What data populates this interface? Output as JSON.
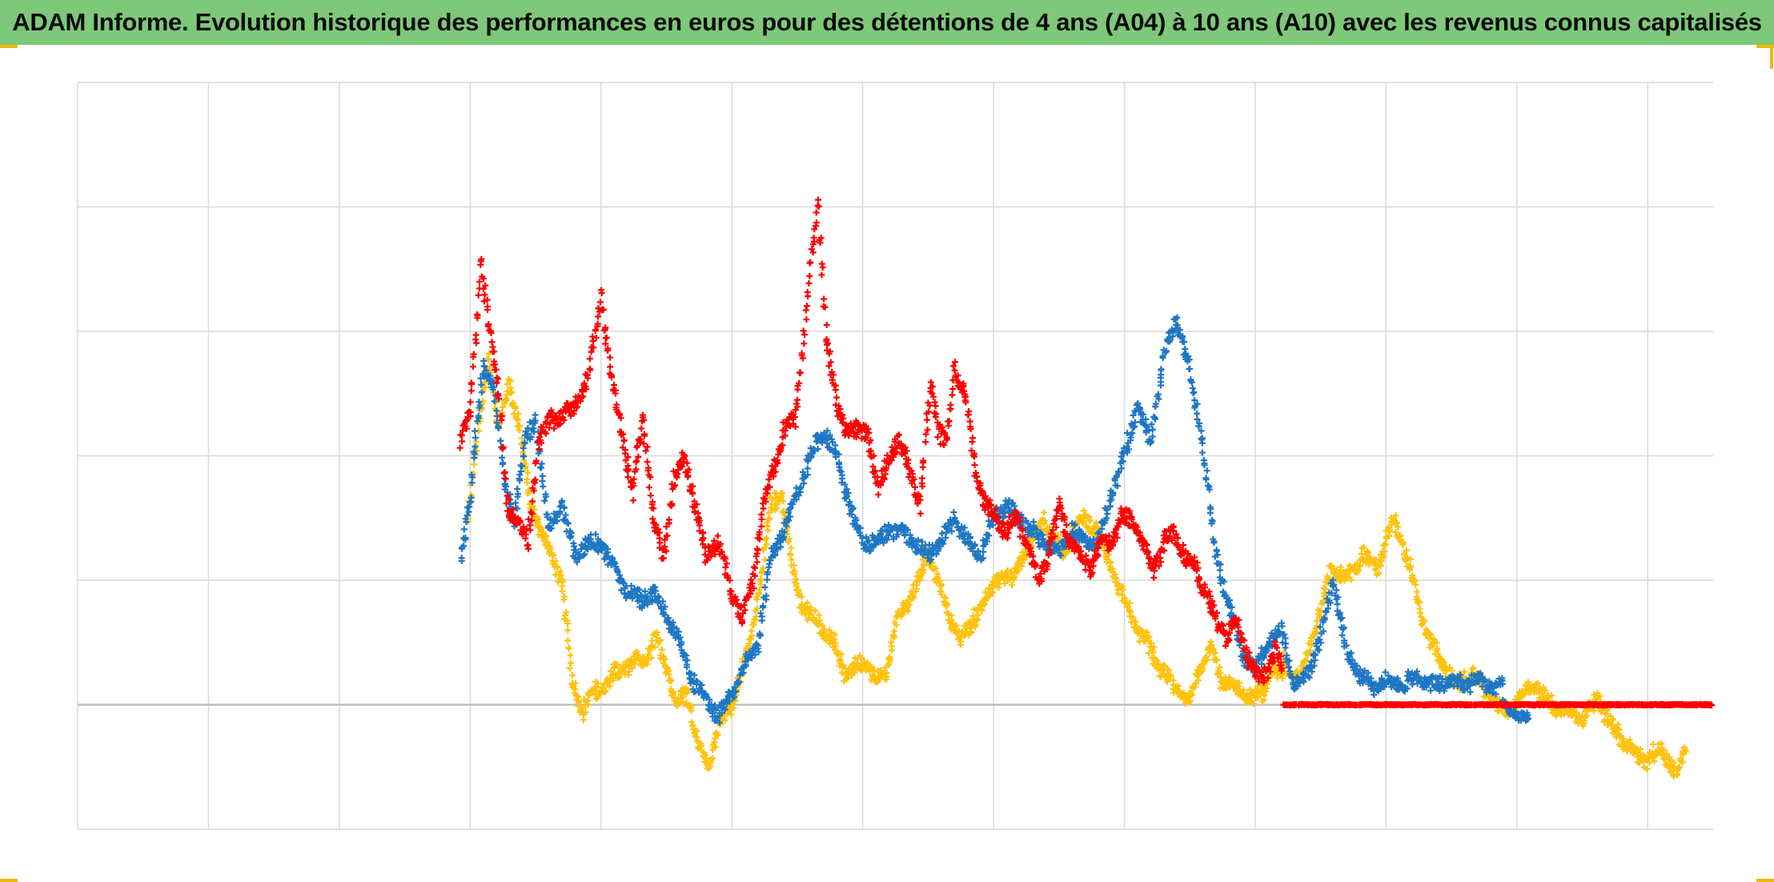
{
  "title": "ADAM Informe. Evolution historique des performances en euros pour des détentions de 4 ans (A04) à 10 ans (A10) avec les revenus connus capitalisés",
  "colors": {
    "title_background": "#7ec87a",
    "grid": "#d9d9d9",
    "zero_line": "#bfbfbf",
    "corner_marks": "#f2b705"
  },
  "chart_data": {
    "type": "scatter",
    "marker": "plus",
    "title": "ADAM Informe. Evolution historique des performances en euros pour des détentions de 4 ans (A04) à 10 ans (A10) avec les revenus connus capitalisés",
    "xlabel": "",
    "ylabel": "",
    "x_tick_labels": [],
    "y_tick_labels": [],
    "grid": true,
    "legend": "none",
    "xlim": [
      0,
      12.5
    ],
    "ylim": [
      -1,
      5
    ],
    "x_gridlines": [
      0,
      1,
      2,
      3,
      4,
      5,
      6,
      7,
      8,
      9,
      10,
      11,
      12
    ],
    "y_gridlines": [
      -1,
      0,
      1,
      2,
      3,
      4,
      5
    ],
    "series": [
      {
        "color": "#ff0000",
        "density": 3,
        "segments": [
          {
            "x": [
              2.93,
              3.0,
              3.08,
              3.14,
              3.22,
              3.28,
              3.36,
              3.44,
              3.52,
              3.62,
              3.7,
              3.8,
              3.9,
              4.0,
              4.08,
              4.16,
              4.24,
              4.32,
              4.4,
              4.48,
              4.56,
              4.64,
              4.72,
              4.8,
              4.9,
              5.0,
              5.08,
              5.16,
              5.24,
              5.32,
              5.4,
              5.48,
              5.54,
              5.6,
              5.66,
              5.72,
              5.8,
              5.88,
              5.96,
              6.04,
              6.12,
              6.2,
              6.28,
              6.36,
              6.44,
              6.52,
              6.58,
              6.64,
              6.7,
              6.78,
              6.86,
              6.94,
              7.02,
              7.1,
              7.18,
              7.26,
              7.34,
              7.42,
              7.5,
              7.58,
              7.66,
              7.74,
              7.82,
              7.9,
              7.98,
              8.06,
              8.14,
              8.22,
              8.3,
              8.38,
              8.46,
              8.54,
              8.62,
              8.7,
              8.78,
              8.86,
              8.94,
              9.02,
              9.1,
              9.16,
              9.22
            ],
            "y": [
              2.1,
              2.4,
              3.5,
              3.1,
              2.5,
              1.6,
              1.5,
              1.3,
              2.1,
              2.3,
              2.3,
              2.4,
              2.6,
              3.3,
              2.6,
              2.2,
              1.7,
              2.3,
              1.5,
              1.2,
              1.8,
              2.0,
              1.6,
              1.2,
              1.3,
              0.9,
              0.7,
              1.0,
              1.6,
              1.9,
              2.2,
              2.3,
              2.8,
              3.5,
              4.0,
              3.0,
              2.4,
              2.2,
              2.2,
              2.2,
              1.7,
              2.0,
              2.1,
              1.9,
              1.6,
              2.6,
              2.2,
              2.1,
              2.7,
              2.5,
              1.9,
              1.6,
              1.5,
              1.4,
              1.5,
              1.3,
              1.0,
              1.2,
              1.6,
              1.3,
              1.2,
              1.1,
              1.3,
              1.3,
              1.5,
              1.5,
              1.3,
              1.1,
              1.3,
              1.4,
              1.2,
              1.1,
              0.9,
              0.7,
              0.55,
              0.65,
              0.4,
              0.2,
              0.3,
              0.45,
              0.25
            ],
            "noise": 0.055
          },
          {
            "x": [
              9.22,
              9.7,
              10.2,
              10.8,
              11.4,
              12.0,
              12.5
            ],
            "y": [
              0.0,
              0.0,
              0.0,
              0.0,
              0.0,
              0.0,
              0.0
            ],
            "noise": 0.003
          }
        ]
      },
      {
        "color": "#1f77c4",
        "density": 3,
        "segments": [
          {
            "x": [
              2.93,
              3.0,
              3.1,
              3.18,
              3.26,
              3.34,
              3.42,
              3.5,
              3.6,
              3.7,
              3.8,
              3.9,
              4.0,
              4.1,
              4.2,
              4.3,
              4.4,
              4.5,
              4.6,
              4.7,
              4.8,
              4.9,
              5.0,
              5.1,
              5.2,
              5.3,
              5.4,
              5.5,
              5.6,
              5.7,
              5.8,
              5.9,
              6.0,
              6.1,
              6.2,
              6.3,
              6.4,
              6.5,
              6.6,
              6.7,
              6.8,
              6.9,
              7.0,
              7.1,
              7.2,
              7.3,
              7.4,
              7.5,
              7.6,
              7.7,
              7.8,
              7.9,
              8.0,
              8.1,
              8.2,
              8.3,
              8.4,
              8.5,
              8.6,
              8.7,
              8.8,
              8.9,
              9.0,
              9.1,
              9.2,
              9.3,
              9.4,
              9.5,
              9.6,
              9.7,
              9.8,
              9.9,
              10.0,
              10.1,
              10.2,
              10.3,
              10.4,
              10.5,
              10.6,
              10.7,
              10.8,
              10.9
            ],
            "y": [
              1.2,
              1.7,
              2.7,
              2.6,
              1.8,
              1.5,
              2.1,
              2.3,
              1.4,
              1.6,
              1.2,
              1.3,
              1.3,
              1.1,
              0.9,
              0.85,
              0.9,
              0.7,
              0.5,
              0.2,
              0.05,
              -0.1,
              0.1,
              0.3,
              0.5,
              1.2,
              1.4,
              1.7,
              2.0,
              2.2,
              2.0,
              1.6,
              1.3,
              1.3,
              1.4,
              1.4,
              1.3,
              1.2,
              1.3,
              1.5,
              1.3,
              1.2,
              1.5,
              1.6,
              1.5,
              1.4,
              1.3,
              1.2,
              1.4,
              1.3,
              1.3,
              1.7,
              2.0,
              2.4,
              2.1,
              2.8,
              3.1,
              2.7,
              2.1,
              1.2,
              0.8,
              0.4,
              0.3,
              0.5,
              0.6,
              0.15,
              0.25,
              0.55,
              1.0,
              0.4,
              0.25,
              0.15,
              0.2,
              0.15,
              0.2,
              0.2,
              0.15,
              0.2,
              0.15,
              0.2,
              0.15,
              0.15
            ],
            "noise": 0.05
          },
          {
            "x": [
              10.9,
              11.0,
              11.1
            ],
            "y": [
              0.0,
              -0.1,
              -0.1
            ],
            "noise": 0.03
          }
        ]
      },
      {
        "color": "#ffc20e",
        "density": 3,
        "segments": [
          {
            "x": [
              2.98,
              3.06,
              3.14,
              3.22,
              3.3,
              3.38,
              3.46,
              3.54,
              3.62,
              3.7,
              3.78,
              3.86,
              3.94,
              4.02,
              4.1,
              4.18,
              4.26,
              4.34,
              4.42,
              4.5,
              4.58,
              4.66,
              4.74,
              4.82,
              4.9,
              4.98,
              5.06,
              5.14,
              5.22,
              5.3,
              5.38,
              5.46,
              5.54,
              5.62,
              5.7,
              5.78,
              5.86,
              5.94,
              6.02,
              6.1,
              6.18,
              6.26,
              6.34,
              6.42,
              6.5,
              6.58,
              6.66,
              6.74,
              6.82,
              6.9,
              6.98,
              7.06,
              7.14,
              7.22,
              7.3,
              7.38,
              7.46,
              7.54,
              7.62,
              7.7,
              7.78,
              7.86,
              7.94,
              8.02,
              8.1,
              8.18,
              8.26,
              8.34,
              8.42,
              8.5,
              8.58,
              8.66,
              8.74,
              8.82,
              8.9,
              8.98,
              9.06,
              9.14,
              9.22
            ],
            "y": [
              1.5,
              2.2,
              2.8,
              2.2,
              2.6,
              2.2,
              1.6,
              1.4,
              1.2,
              1.0,
              0.2,
              -0.05,
              0.1,
              0.15,
              0.25,
              0.3,
              0.35,
              0.35,
              0.55,
              0.3,
              0.0,
              0.1,
              -0.3,
              -0.5,
              -0.15,
              -0.05,
              0.2,
              0.5,
              1.0,
              1.6,
              1.7,
              1.1,
              0.8,
              0.7,
              0.6,
              0.5,
              0.25,
              0.3,
              0.35,
              0.2,
              0.25,
              0.7,
              0.8,
              1.0,
              1.2,
              1.0,
              0.7,
              0.55,
              0.6,
              0.8,
              0.9,
              1.05,
              1.0,
              1.2,
              1.3,
              1.5,
              1.35,
              1.2,
              1.4,
              1.5,
              1.4,
              1.2,
              1.0,
              0.8,
              0.6,
              0.5,
              0.3,
              0.2,
              0.1,
              0.05,
              0.3,
              0.45,
              0.2,
              0.15,
              0.1,
              0.05,
              0.1,
              0.3,
              0.2
            ],
            "noise": 0.05
          },
          {
            "x": [
              9.22,
              9.34,
              9.46,
              9.58,
              9.7,
              9.82,
              9.94,
              10.06,
              10.18,
              10.3,
              10.42,
              10.54,
              10.66,
              10.78,
              10.9,
              11.02,
              11.14,
              11.26,
              11.38,
              11.5,
              11.62,
              11.74,
              11.86,
              11.98,
              12.1,
              12.22,
              12.3
            ],
            "y": [
              0.35,
              0.2,
              0.6,
              1.1,
              1.0,
              1.2,
              1.1,
              1.5,
              1.1,
              0.6,
              0.35,
              0.15,
              0.25,
              0.1,
              -0.05,
              0.05,
              0.15,
              0.0,
              -0.05,
              -0.1,
              0.05,
              -0.2,
              -0.35,
              -0.45,
              -0.35,
              -0.55,
              -0.35
            ],
            "noise": 0.05
          }
        ]
      }
    ]
  }
}
